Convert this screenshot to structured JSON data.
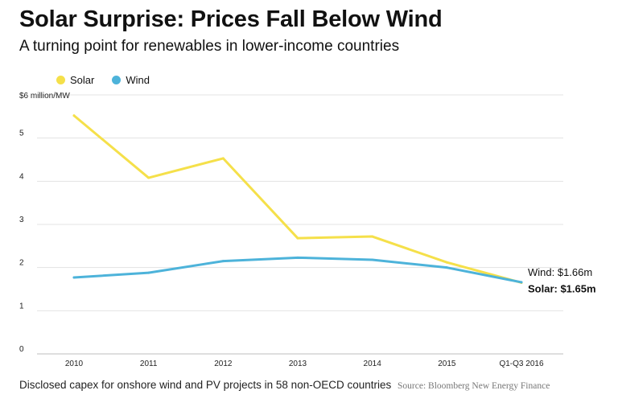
{
  "title": "Solar Surprise: Prices Fall Below Wind",
  "subtitle": "A turning point for renewables in lower-income countries",
  "footer": {
    "note": "Disclosed capex for onshore wind and PV projects in 58 non-OECD countries",
    "source": "Source: Bloomberg New Energy Finance"
  },
  "colors": {
    "solar": "#f5e04a",
    "wind": "#4db3da",
    "grid": "#e3e3e3",
    "axis": "#bdbdbd"
  },
  "chart_data": {
    "type": "line",
    "title": "Solar Surprise: Prices Fall Below Wind",
    "subtitle": "A turning point for renewables in lower-income countries",
    "xlabel": "",
    "ylabel": "$6 million/MW",
    "categories": [
      "2010",
      "2011",
      "2012",
      "2013",
      "2014",
      "2015",
      "Q1-Q3 2016"
    ],
    "y_ticks": [
      {
        "value": 0,
        "label": "0"
      },
      {
        "value": 1,
        "label": "1"
      },
      {
        "value": 2,
        "label": "2"
      },
      {
        "value": 3,
        "label": "3"
      },
      {
        "value": 4,
        "label": "4"
      },
      {
        "value": 5,
        "label": "5"
      },
      {
        "value": 6,
        "label": "$6 million/MW"
      }
    ],
    "ylim": [
      0,
      6
    ],
    "grid": true,
    "legend_position": "top-left",
    "series": [
      {
        "name": "Solar",
        "key": "solar",
        "values": [
          5.52,
          4.08,
          4.53,
          2.68,
          2.72,
          2.12,
          1.65
        ]
      },
      {
        "name": "Wind",
        "key": "wind",
        "values": [
          1.77,
          1.88,
          2.15,
          2.23,
          2.18,
          2.0,
          1.66
        ]
      }
    ],
    "annotations": {
      "wind": "Wind: $1.66m",
      "solar": "Solar: $1.65m"
    }
  }
}
